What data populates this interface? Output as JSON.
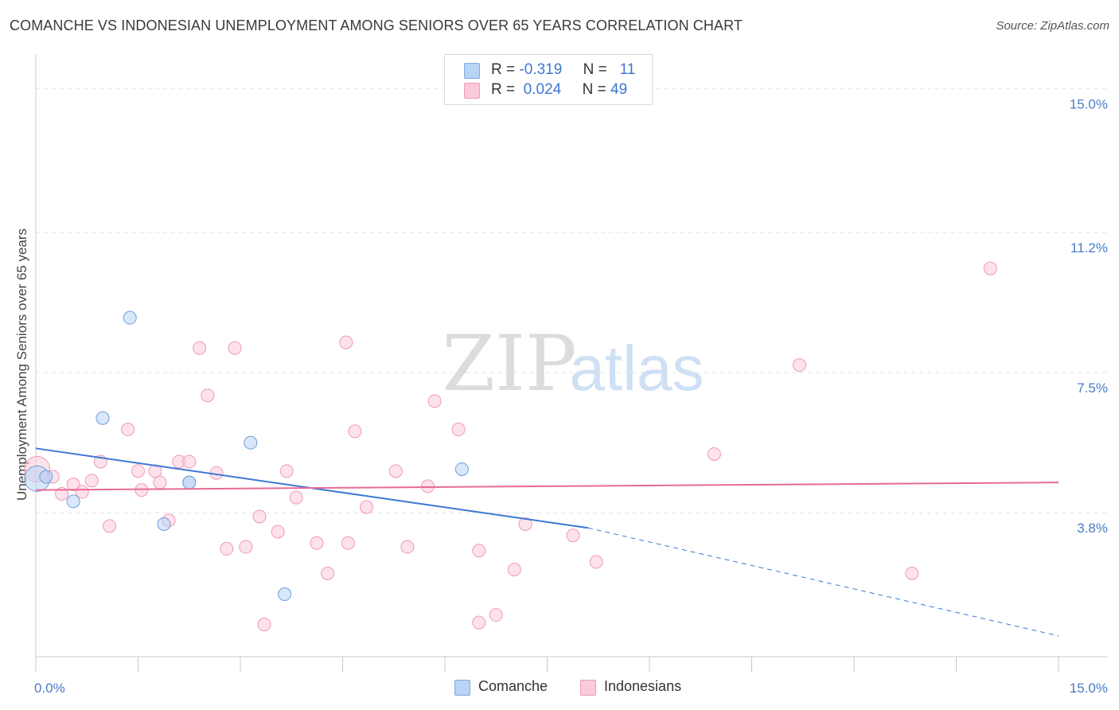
{
  "title": "COMANCHE VS INDONESIAN UNEMPLOYMENT AMONG SENIORS OVER 65 YEARS CORRELATION CHART",
  "source": "Source: ZipAtlas.com",
  "watermark": {
    "zip": "ZIP",
    "atlas": "atlas"
  },
  "legend_top": [
    {
      "r_label": "R =",
      "r_value": "-0.319",
      "n_label": "N =",
      "n_value": "11",
      "color": "#b9d4f5",
      "border": "#7da9e0"
    },
    {
      "r_label": "R =",
      "r_value": "0.024",
      "n_label": "N =",
      "n_value": "49",
      "color": "#fbcadb",
      "border": "#ee9ab8"
    }
  ],
  "chart_data": {
    "type": "scatter",
    "title": "COMANCHE VS INDONESIAN UNEMPLOYMENT AMONG SENIORS OVER 65 YEARS CORRELATION CHART",
    "xlabel": "",
    "ylabel": "Unemployment Among Seniors over 65 years",
    "xlim": [
      0,
      15
    ],
    "ylim": [
      0,
      15.7
    ],
    "x_tick_labels": [
      "0.0%",
      "15.0%"
    ],
    "y_ticks": [
      3.8,
      7.5,
      11.2,
      15.0
    ],
    "y_tick_labels": [
      "3.8%",
      "7.5%",
      "11.2%",
      "15.0%"
    ],
    "grid": true,
    "series": [
      {
        "name": "Comanche",
        "color": "#b9d4f5",
        "stroke": "#6f9fd8",
        "line_color": "#3b78d6",
        "trend": {
          "x0": 0,
          "y0": 5.5,
          "x1": 8.1,
          "y1": 3.4,
          "dash_x1": 15.0,
          "dash_y1": 0.55
        },
        "points": [
          [
            0.02,
            4.7
          ],
          [
            0.15,
            4.75
          ],
          [
            0.55,
            4.1
          ],
          [
            1.38,
            8.95
          ],
          [
            0.98,
            6.3
          ],
          [
            1.88,
            3.5
          ],
          [
            2.25,
            4.6
          ],
          [
            2.25,
            4.6
          ],
          [
            3.15,
            5.65
          ],
          [
            3.65,
            1.65
          ],
          [
            6.25,
            4.95
          ]
        ]
      },
      {
        "name": "Indonesians",
        "color": "#fbcadb",
        "stroke": "#ee9ab8",
        "line_color": "#e86a95",
        "trend": {
          "x0": 0,
          "y0": 4.4,
          "x1": 15.0,
          "y1": 4.6
        },
        "points": [
          [
            0.02,
            4.95
          ],
          [
            0.25,
            4.75
          ],
          [
            0.38,
            4.3
          ],
          [
            0.55,
            4.55
          ],
          [
            0.68,
            4.35
          ],
          [
            0.82,
            4.65
          ],
          [
            0.95,
            5.15
          ],
          [
            1.08,
            3.45
          ],
          [
            1.35,
            6.0
          ],
          [
            1.5,
            4.9
          ],
          [
            1.55,
            4.4
          ],
          [
            1.75,
            4.9
          ],
          [
            1.82,
            4.6
          ],
          [
            1.95,
            3.6
          ],
          [
            2.1,
            5.15
          ],
          [
            2.25,
            5.15
          ],
          [
            2.4,
            8.15
          ],
          [
            2.52,
            6.9
          ],
          [
            2.65,
            4.85
          ],
          [
            2.8,
            2.85
          ],
          [
            2.92,
            8.15
          ],
          [
            3.08,
            2.9
          ],
          [
            3.28,
            3.7
          ],
          [
            3.35,
            0.85
          ],
          [
            3.55,
            3.3
          ],
          [
            3.68,
            4.9
          ],
          [
            3.82,
            4.2
          ],
          [
            4.12,
            3.0
          ],
          [
            4.28,
            2.2
          ],
          [
            4.55,
            8.3
          ],
          [
            4.58,
            3.0
          ],
          [
            4.68,
            5.95
          ],
          [
            4.85,
            3.95
          ],
          [
            5.28,
            4.9
          ],
          [
            5.45,
            2.9
          ],
          [
            5.75,
            4.5
          ],
          [
            5.85,
            6.75
          ],
          [
            6.2,
            6.0
          ],
          [
            6.5,
            2.8
          ],
          [
            6.5,
            0.9
          ],
          [
            6.75,
            1.1
          ],
          [
            7.02,
            2.3
          ],
          [
            7.18,
            3.5
          ],
          [
            7.88,
            3.2
          ],
          [
            8.22,
            2.5
          ],
          [
            9.95,
            5.35
          ],
          [
            11.2,
            7.7
          ],
          [
            12.85,
            2.2
          ],
          [
            14.0,
            10.25
          ]
        ]
      }
    ],
    "legend": [
      "Comanche",
      "Indonesians"
    ]
  },
  "legend_bottom": [
    {
      "label": "Comanche",
      "color": "#b9d4f5",
      "border": "#7da9e0"
    },
    {
      "label": "Indonesians",
      "color": "#fbcadb",
      "border": "#ee9ab8"
    }
  ]
}
